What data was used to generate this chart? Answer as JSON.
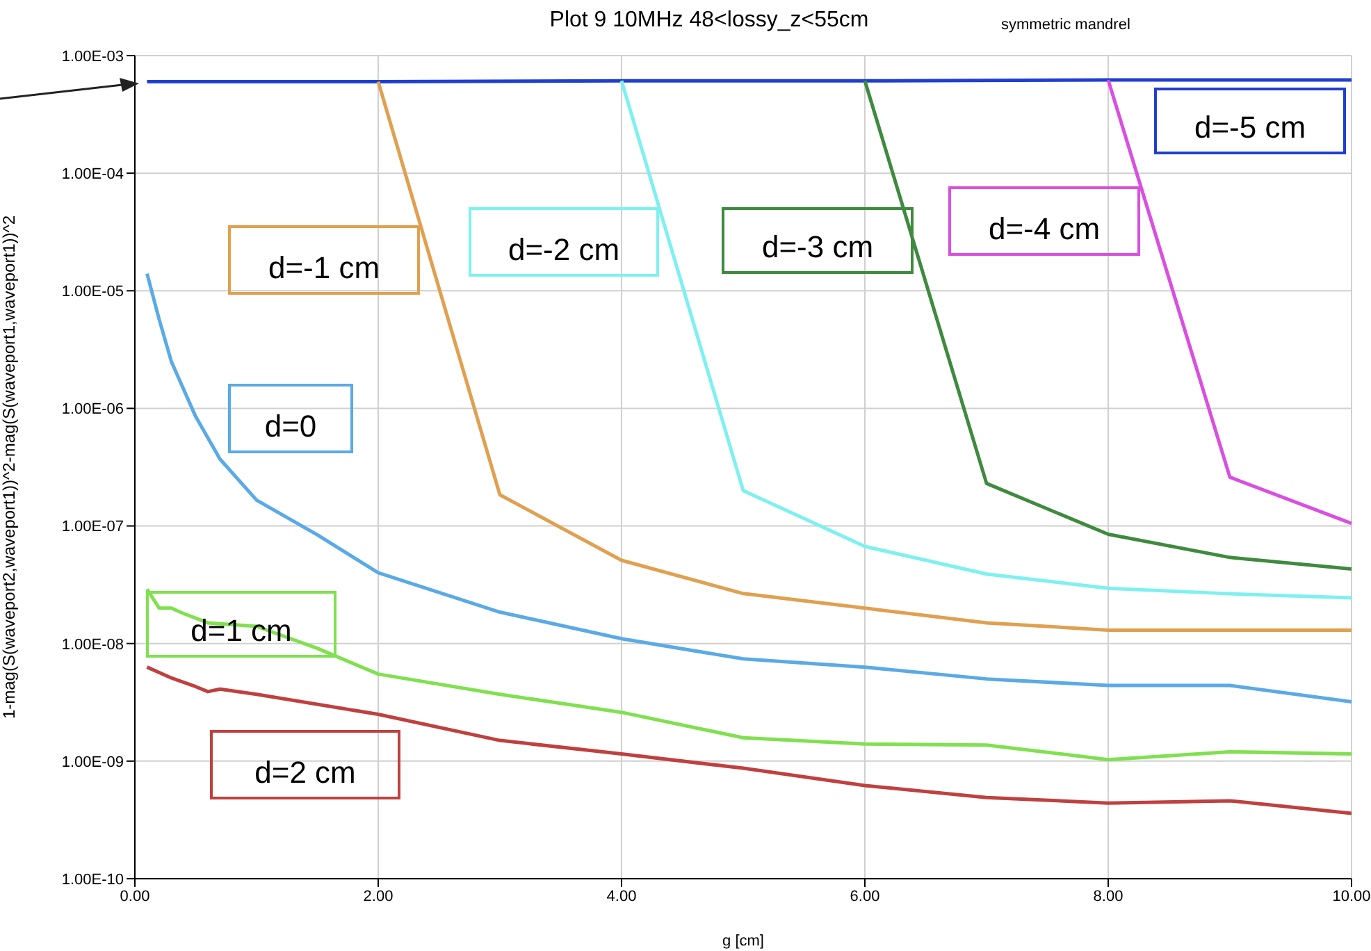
{
  "chart_data": {
    "type": "line",
    "title": "Plot 9 10MHz 48<lossy_z<55cm",
    "subtitle": "symmetric mandrel",
    "xlabel": "g [cm]",
    "ylabel": "1-mag(S(waveport2,waveport1))^2-mag(S(waveport1,waveport1))^2",
    "log": "y",
    "grid": true,
    "marker": "none",
    "line_style": "solid",
    "xlim": [
      0,
      10
    ],
    "xticks": [
      {
        "value": 0,
        "label": "0.00"
      },
      {
        "value": 2,
        "label": "2.00"
      },
      {
        "value": 4,
        "label": "4.00"
      },
      {
        "value": 6,
        "label": "6.00"
      },
      {
        "value": 8,
        "label": "8.00"
      },
      {
        "value": 10,
        "label": "10.00"
      }
    ],
    "ylim": [
      1e-10,
      0.001
    ],
    "yticks": [
      {
        "value": 1e-10,
        "label": "1.00E-10"
      },
      {
        "value": 1e-09,
        "label": "1.00E-09"
      },
      {
        "value": 1e-08,
        "label": "1.00E-08"
      },
      {
        "value": 1e-07,
        "label": "1.00E-07"
      },
      {
        "value": 1e-06,
        "label": "1.00E-06"
      },
      {
        "value": 1e-05,
        "label": "1.00E-05"
      },
      {
        "value": 0.0001,
        "label": "1.00E-04"
      },
      {
        "value": 0.001,
        "label": "1.00E-03"
      }
    ],
    "series": [
      {
        "name": "d=-5 cm",
        "color": "#1f3fd0",
        "x": [
          0.1,
          2,
          4,
          6,
          8,
          10
        ],
        "values": [
          0.0006,
          0.0006,
          0.00061,
          0.00061,
          0.00062,
          0.00062
        ]
      },
      {
        "name": "d=-4 cm",
        "color": "#d94fe0",
        "x": [
          8,
          9,
          10
        ],
        "values": [
          0.00062,
          2.6e-07,
          1.05e-07
        ]
      },
      {
        "name": "d=-3 cm",
        "color": "#3f8a3f",
        "x": [
          6,
          7,
          8,
          9,
          10
        ],
        "values": [
          0.00061,
          2.3e-07,
          8.5e-08,
          5.4e-08,
          4.3e-08
        ]
      },
      {
        "name": "d=-2 cm",
        "color": "#7ff0f0",
        "x": [
          4,
          5,
          6,
          7,
          8,
          9,
          10
        ],
        "values": [
          0.00061,
          2e-07,
          6.7e-08,
          3.9e-08,
          2.95e-08,
          2.65e-08,
          2.45e-08
        ]
      },
      {
        "name": "d=-1 cm",
        "color": "#e0a050",
        "x": [
          2,
          3,
          4,
          5,
          6,
          7,
          8,
          9,
          10
        ],
        "values": [
          0.0006,
          1.84e-07,
          5.1e-08,
          2.66e-08,
          2e-08,
          1.5e-08,
          1.3e-08,
          1.3e-08,
          1.3e-08
        ]
      },
      {
        "name": "d=0",
        "color": "#5aaae6",
        "x": [
          0.1,
          0.2,
          0.3,
          0.5,
          0.7,
          1,
          1.5,
          2,
          3,
          4,
          5,
          6,
          7,
          8,
          9,
          10
        ],
        "values": [
          1.4e-05,
          5.7e-06,
          2.5e-06,
          8.5e-07,
          3.7e-07,
          1.66e-07,
          8.4e-08,
          4e-08,
          1.85e-08,
          1.1e-08,
          7.4e-09,
          6.3e-09,
          5e-09,
          4.4e-09,
          4.4e-09,
          3.2e-09
        ]
      },
      {
        "name": "d=1 cm",
        "color": "#80e050",
        "x": [
          0.1,
          0.2,
          0.3,
          0.4,
          0.6,
          0.8,
          1,
          1.5,
          2,
          3,
          4,
          5,
          6,
          7,
          8,
          9,
          10
        ],
        "values": [
          2.9e-08,
          2e-08,
          2e-08,
          1.8e-08,
          1.5e-08,
          1.45e-08,
          1.4e-08,
          9.1e-09,
          5.5e-09,
          3.7e-09,
          2.6e-09,
          1.58e-09,
          1.4e-09,
          1.37e-09,
          1.03e-09,
          1.2e-09,
          1.15e-09
        ]
      },
      {
        "name": "d=2 cm",
        "color": "#c04040",
        "x": [
          0.1,
          0.3,
          0.5,
          0.6,
          0.7,
          1,
          2,
          3,
          4,
          5,
          6,
          7,
          8,
          9,
          10
        ],
        "values": [
          6.3e-09,
          5.1e-09,
          4.3e-09,
          3.9e-09,
          4.1e-09,
          3.7e-09,
          2.5e-09,
          1.5e-09,
          1.15e-09,
          8.7e-10,
          6.2e-10,
          4.9e-10,
          4.4e-10,
          4.6e-10,
          3.6e-10
        ]
      }
    ]
  }
}
